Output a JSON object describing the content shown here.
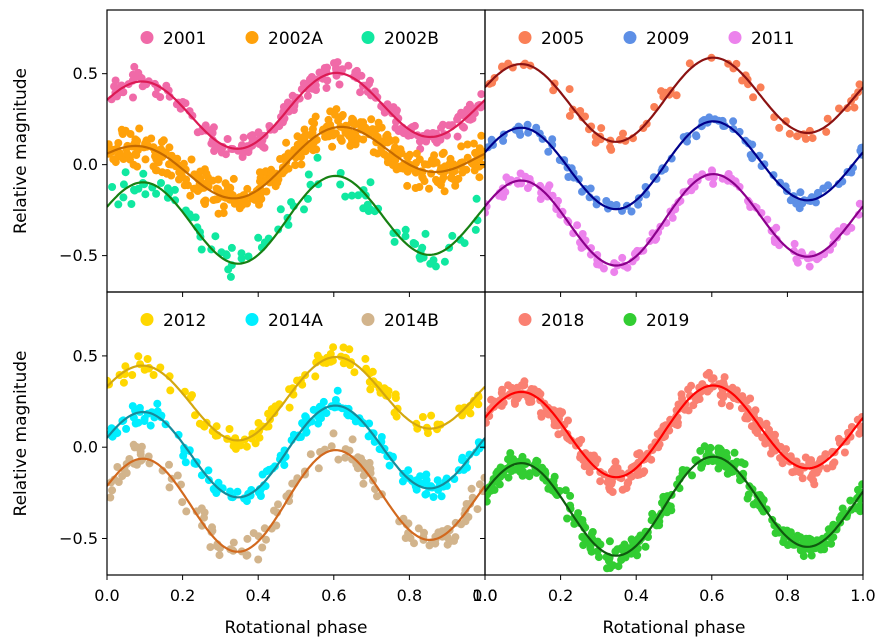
{
  "chart_data": {
    "type": "scatter",
    "xlabel": "Rotational phase",
    "ylabel": "Relative magnitude",
    "xlim": [
      0,
      1
    ],
    "ylim": [
      -0.7,
      0.85
    ],
    "xticks": [
      "0.0",
      "0.2",
      "0.4",
      "0.6",
      "0.8",
      "1.0"
    ],
    "yticks": [
      "0.5",
      "0.0",
      "−0.5"
    ],
    "panels": [
      {
        "position": "top-left",
        "legend": "top",
        "series": [
          {
            "name": "2001",
            "color": "#f06aa8",
            "fit_color": "#dc1a54",
            "offset": 0.3,
            "amp1": 0.04,
            "amp2": 0.18,
            "noise": 0.03,
            "n": 230,
            "seed": 11
          },
          {
            "name": "2002A",
            "color": "#ffa10a",
            "fit_color": "#c46a00",
            "offset": 0.02,
            "amp1": 0.09,
            "amp2": 0.13,
            "noise": 0.05,
            "n": 420,
            "seed": 23
          },
          {
            "name": "2002B",
            "color": "#10e8a0",
            "fit_color": "#178012",
            "offset": -0.3,
            "amp1": 0.03,
            "amp2": 0.22,
            "noise": 0.05,
            "n": 95,
            "seed": 37
          }
        ]
      },
      {
        "position": "top-right",
        "legend": "top",
        "series": [
          {
            "name": "2005",
            "color": "#fa7f56",
            "fit_color": "#8b1212",
            "offset": 0.36,
            "amp1": 0.03,
            "amp2": 0.21,
            "noise": 0.03,
            "n": 70,
            "seed": 41
          },
          {
            "name": "2009",
            "color": "#5d8fe6",
            "fit_color": "#00008b",
            "offset": 0.0,
            "amp1": 0.03,
            "amp2": 0.22,
            "noise": 0.025,
            "n": 110,
            "seed": 53
          },
          {
            "name": "2011",
            "color": "#ec82ec",
            "fit_color": "#8b008b",
            "offset": -0.3,
            "amp1": 0.03,
            "amp2": 0.23,
            "noise": 0.025,
            "n": 150,
            "seed": 67
          }
        ]
      },
      {
        "position": "bottom-left",
        "legend": "top",
        "series": [
          {
            "name": "2012",
            "color": "#ffd700",
            "fit_color": "#d4a80f",
            "offset": 0.27,
            "amp1": 0.04,
            "amp2": 0.2,
            "noise": 0.03,
            "n": 130,
            "seed": 71
          },
          {
            "name": "2014A",
            "color": "#00eeff",
            "fit_color": "#168b9b",
            "offset": -0.02,
            "amp1": 0.03,
            "amp2": 0.23,
            "noise": 0.03,
            "n": 190,
            "seed": 83
          },
          {
            "name": "2014B",
            "color": "#d2b48c",
            "fit_color": "#d2691e",
            "offset": -0.29,
            "amp1": 0.04,
            "amp2": 0.25,
            "noise": 0.04,
            "n": 150,
            "seed": 97
          }
        ]
      },
      {
        "position": "bottom-right",
        "legend": "top",
        "series": [
          {
            "name": "2018",
            "color": "#fa8072",
            "fit_color": "#ff0000",
            "offset": 0.09,
            "amp1": 0.03,
            "amp2": 0.23,
            "noise": 0.035,
            "n": 360,
            "seed": 101
          },
          {
            "name": "2019",
            "color": "#32cd32",
            "fit_color": "#0f5a0f",
            "offset": -0.32,
            "amp1": 0.03,
            "amp2": 0.25,
            "noise": 0.035,
            "n": 330,
            "seed": 113
          }
        ]
      }
    ]
  }
}
